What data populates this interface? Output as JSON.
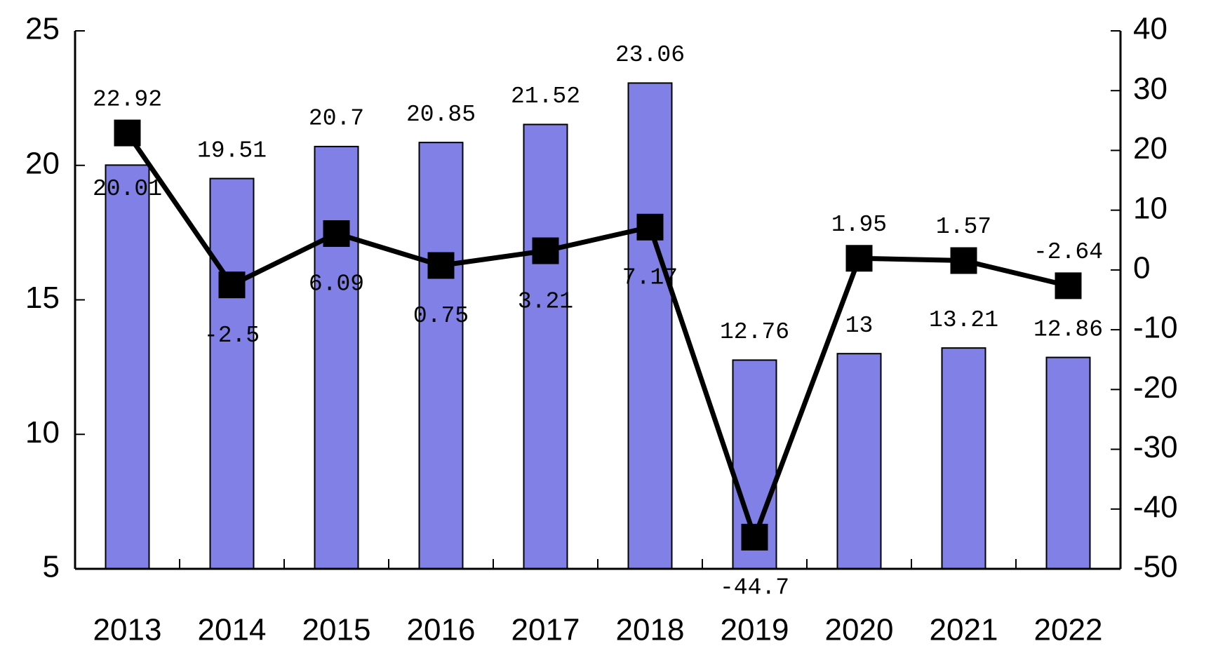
{
  "chart_data": {
    "type": "bar-line",
    "categories": [
      "2013",
      "2014",
      "2015",
      "2016",
      "2017",
      "2018",
      "2019",
      "2020",
      "2021",
      "2022"
    ],
    "series": [
      {
        "type": "bar",
        "color": "#8080e6",
        "axis": "y",
        "values": [
          20.01,
          19.51,
          20.7,
          20.85,
          21.52,
          23.06,
          12.76,
          13,
          13.21,
          12.86
        ]
      },
      {
        "type": "line",
        "color": "#000000",
        "axis": "y2",
        "values": [
          22.92,
          -2.5,
          6.09,
          0.75,
          3.21,
          7.17,
          -44.7,
          1.95,
          1.57,
          -2.64
        ]
      }
    ],
    "ylim": [
      5,
      25
    ],
    "yticks": [
      5,
      10,
      15,
      20,
      25
    ],
    "y2lim": [
      -50,
      40
    ],
    "y2ticks": [
      -50,
      -40,
      -30,
      -20,
      -10,
      0,
      10,
      20,
      30,
      40
    ]
  }
}
